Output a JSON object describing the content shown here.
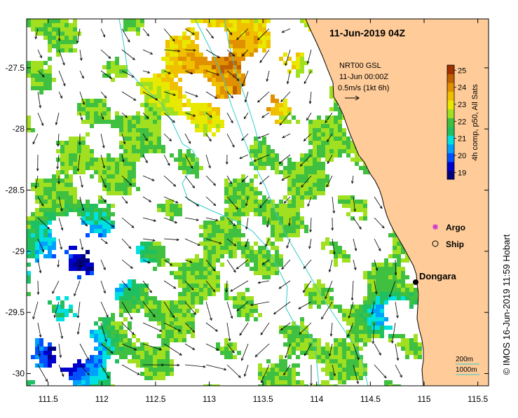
{
  "map": {
    "title": "11-Jun-2019 04Z",
    "axes": {
      "lon_ticks": [
        "111.5",
        "112",
        "112.5",
        "113",
        "113.5",
        "114",
        "114.5",
        "115",
        "115.5"
      ],
      "lat_ticks": [
        "-27.5",
        "-28",
        "-28.5",
        "-29",
        "-29.5",
        "-30"
      ],
      "lon_range": [
        111.3,
        115.6
      ],
      "lat_range": [
        -30.1,
        -27.1
      ]
    },
    "current_note": {
      "line1": "NRT00 GSL",
      "line2": "11-Jun 00:00Z",
      "line3": "0.5m/s (1kt 6h)"
    },
    "colorbar": {
      "label": "4h comp, p50, All Sats",
      "ticks": [
        "25",
        "24",
        "23",
        "22",
        "21",
        "20",
        "19"
      ],
      "range": [
        18.6,
        25.3
      ],
      "colors": [
        "#000080",
        "#0000cc",
        "#0050ff",
        "#00a0ff",
        "#00e0e0",
        "#20c060",
        "#40c040",
        "#a0e020",
        "#e8e800",
        "#f0c000",
        "#e09000",
        "#c06000",
        "#a03000"
      ]
    },
    "legend": {
      "argo_label": "Argo",
      "ship_label": "Ship",
      "argo_color": "#cc33cc"
    },
    "place": {
      "name": "Dongara",
      "lon": 114.92,
      "lat": -29.25
    },
    "bathymetry": {
      "label_200": "200m",
      "label_1000": "1000m",
      "color": "#33cccc"
    },
    "land_color": "#ffcc99",
    "credit": "© IMOS 16-Jun-2019 11:59 Hobart"
  }
}
